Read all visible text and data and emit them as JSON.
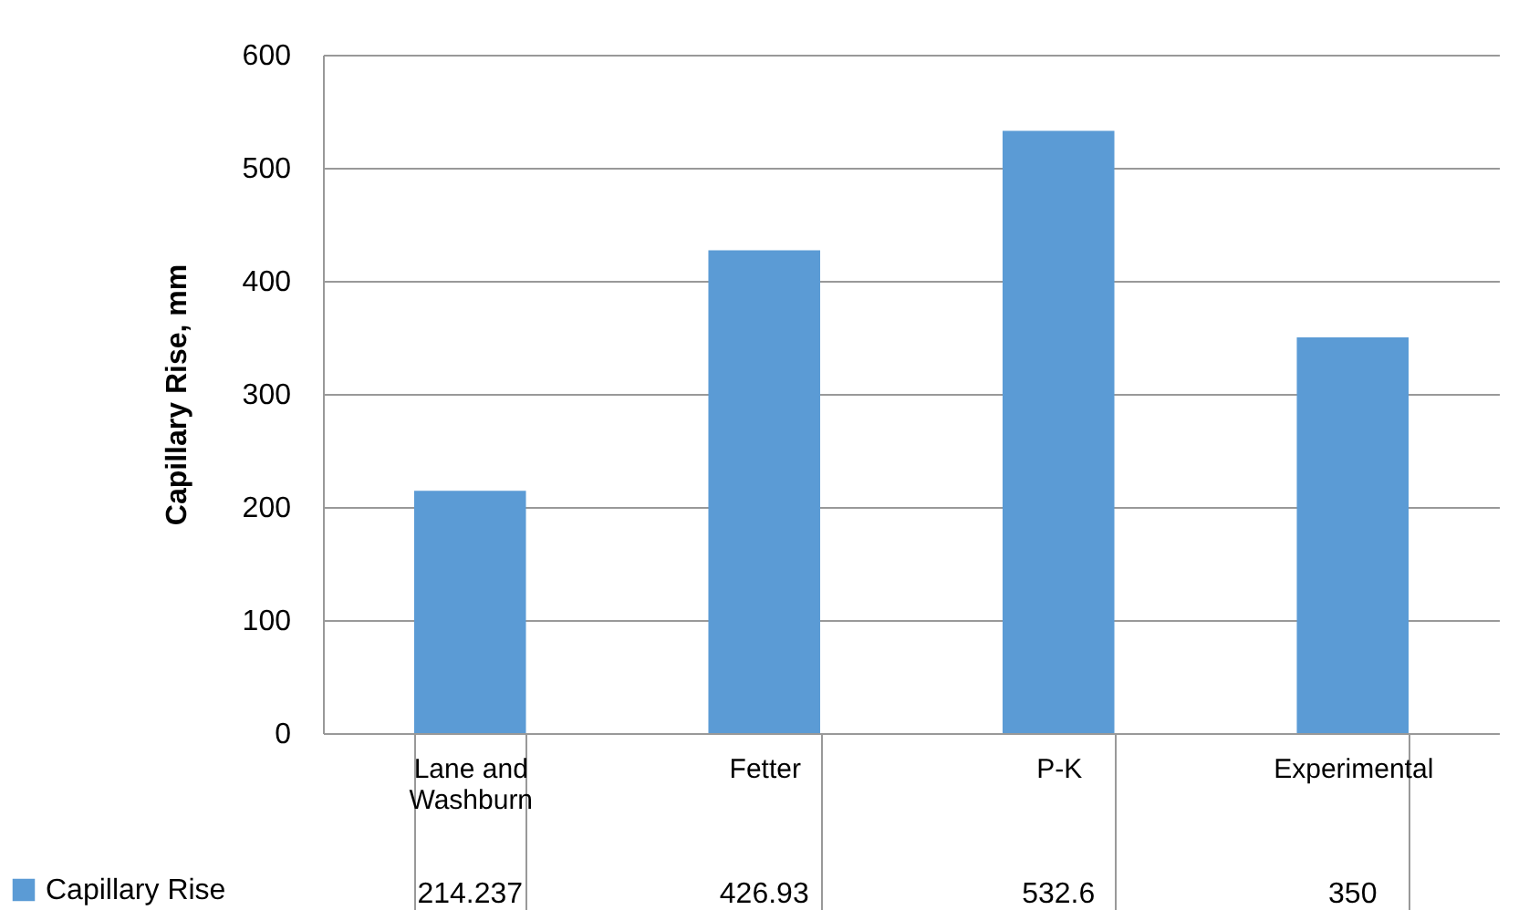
{
  "chart_data": {
    "type": "bar",
    "ylabel": "Capillary Rise, mm",
    "categories": [
      "Lane and Washburn",
      "Fetter",
      "P-K",
      "Experimental"
    ],
    "series": [
      {
        "name": "Capillary Rise",
        "color": "#5b9bd5",
        "values": [
          214.237,
          426.93,
          532.6,
          350
        ]
      }
    ],
    "ylim": [
      0,
      600
    ],
    "yticks": [
      0,
      100,
      200,
      300,
      400,
      500,
      600
    ],
    "grid": "y",
    "legend": "bottom",
    "data_labels": true
  }
}
